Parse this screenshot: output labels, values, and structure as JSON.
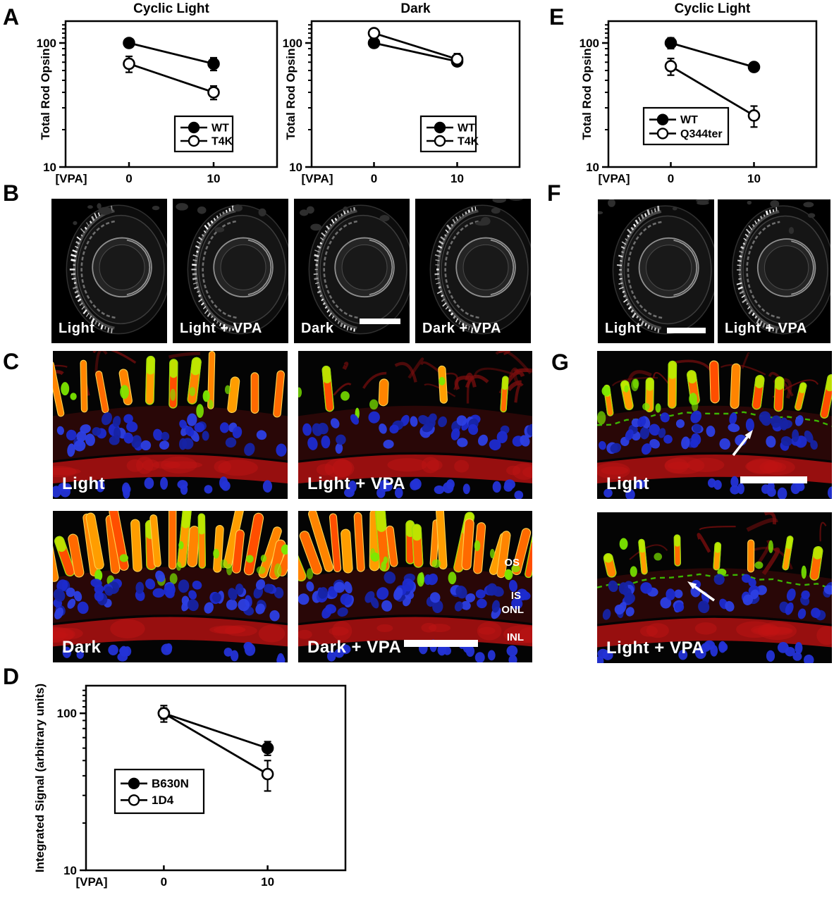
{
  "labels": {
    "a": "A",
    "b": "B",
    "c": "C",
    "d": "D",
    "e": "E",
    "f": "F",
    "g": "G"
  },
  "colors": {
    "chart_ink": "#000000",
    "tile_label": "#ffffff",
    "fluoro_red": "#a31010",
    "fluoro_blue": "#2433d6",
    "fluoro_orange": "#ff6a00",
    "fluoro_green": "#7de800"
  },
  "chart_data": [
    {
      "id": "panel-a-cyclic-light",
      "type": "line",
      "title": "Cyclic Light",
      "xlabel": "[VPA]",
      "ylabel": "Total Rod Opsin",
      "x": [
        0,
        10
      ],
      "x_tick_labels": [
        "0",
        "10"
      ],
      "yscale": "log",
      "ylim": [
        10,
        150
      ],
      "y_major_ticks": [
        {
          "v": 10,
          "label": "10"
        },
        {
          "v": 100,
          "label": "100"
        }
      ],
      "y_minor_ticks": [
        20,
        30,
        40,
        50,
        60,
        70,
        80,
        90,
        110,
        120,
        130,
        140
      ],
      "series": [
        {
          "name": "WT",
          "marker": "filled-circle",
          "values": [
            100,
            68
          ],
          "errors": [
            5,
            8
          ]
        },
        {
          "name": "T4K",
          "marker": "open-circle",
          "values": [
            68,
            40
          ],
          "errors": [
            10,
            5
          ]
        }
      ],
      "legend_position": "lower-right"
    },
    {
      "id": "panel-a-dark",
      "type": "line",
      "title": "Dark",
      "xlabel": "[VPA]",
      "ylabel": "Total Rod Opsin",
      "x": [
        0,
        10
      ],
      "x_tick_labels": [
        "0",
        "10"
      ],
      "yscale": "log",
      "ylim": [
        10,
        150
      ],
      "y_major_ticks": [
        {
          "v": 10,
          "label": "10"
        },
        {
          "v": 100,
          "label": "100"
        }
      ],
      "y_minor_ticks": [
        20,
        30,
        40,
        50,
        60,
        70,
        80,
        90,
        110,
        120,
        130,
        140
      ],
      "series": [
        {
          "name": "WT",
          "marker": "filled-circle",
          "values": [
            100,
            71
          ],
          "errors": [
            8,
            5
          ]
        },
        {
          "name": "T4K",
          "marker": "open-circle",
          "values": [
            120,
            74
          ],
          "errors": [
            10,
            8
          ]
        }
      ],
      "legend_position": "lower-right"
    },
    {
      "id": "panel-e-cyclic-light",
      "type": "line",
      "title": "Cyclic Light",
      "xlabel": "[VPA]",
      "ylabel": "Total Rod Opsin",
      "x": [
        0,
        10
      ],
      "x_tick_labels": [
        "0",
        "10"
      ],
      "yscale": "log",
      "ylim": [
        10,
        150
      ],
      "y_major_ticks": [
        {
          "v": 10,
          "label": "10"
        },
        {
          "v": 100,
          "label": "100"
        }
      ],
      "y_minor_ticks": [
        20,
        30,
        40,
        50,
        60,
        70,
        80,
        90,
        110,
        120,
        130,
        140
      ],
      "series": [
        {
          "name": "WT",
          "marker": "filled-circle",
          "values": [
            100,
            64
          ],
          "errors": [
            10,
            5
          ]
        },
        {
          "name": "Q344ter",
          "marker": "open-circle",
          "values": [
            65,
            26
          ],
          "errors": [
            10,
            5
          ]
        }
      ],
      "legend_position": "inside-left"
    },
    {
      "id": "panel-d-integrated-signal",
      "type": "line",
      "title": "",
      "xlabel": "[VPA]",
      "ylabel": "Integrated Signal (arbitrary units)",
      "x": [
        0,
        10
      ],
      "x_tick_labels": [
        "0",
        "10"
      ],
      "yscale": "log",
      "ylim": [
        10,
        150
      ],
      "y_major_ticks": [
        {
          "v": 10,
          "label": "10"
        },
        {
          "v": 100,
          "label": "100"
        }
      ],
      "y_minor_ticks": [
        20,
        30,
        40,
        50,
        60,
        70,
        80,
        90,
        110,
        120,
        130,
        140
      ],
      "series": [
        {
          "name": "B630N",
          "marker": "filled-circle",
          "values": [
            100,
            60
          ],
          "errors": [
            8,
            6
          ]
        },
        {
          "name": "1D4",
          "marker": "open-circle",
          "values": [
            100,
            41
          ],
          "errors": [
            12,
            9
          ]
        }
      ],
      "legend_position": "inside-left"
    }
  ],
  "panel_b": {
    "tiles": [
      {
        "label": "Light"
      },
      {
        "label": "Light + VPA"
      },
      {
        "label": "Dark",
        "scalebar": true
      },
      {
        "label": "Dark + VPA"
      }
    ]
  },
  "panel_f": {
    "tiles": [
      {
        "label": "Light",
        "scalebar": true
      },
      {
        "label": "Light + VPA"
      }
    ]
  },
  "panel_c": {
    "row1": [
      {
        "label": "Light"
      },
      {
        "label": "Light + VPA"
      }
    ],
    "row2": [
      {
        "label": "Dark"
      },
      {
        "label": "Dark + VPA",
        "scalebar": true
      }
    ],
    "layer_labels": [
      "OS",
      "IS",
      "ONL",
      "INL"
    ]
  },
  "panel_g": {
    "tiles": [
      {
        "label": "Light",
        "scalebar": true,
        "arrow": true
      },
      {
        "label": "Light + VPA",
        "arrow": true
      }
    ]
  }
}
